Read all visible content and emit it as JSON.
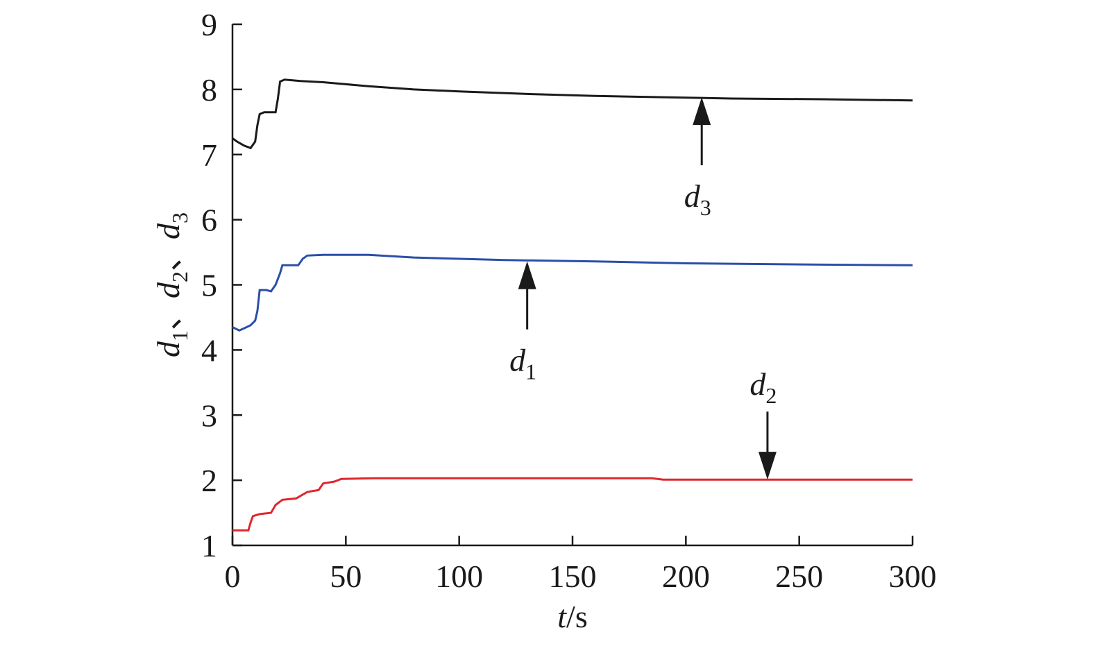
{
  "chart_data": {
    "type": "line",
    "xlabel": {
      "var": "t",
      "unit": "/s"
    },
    "ylabel": [
      {
        "var": "d",
        "sub": "1",
        "sep": "、"
      },
      {
        "var": "d",
        "sub": "2",
        "sep": "、"
      },
      {
        "var": "d",
        "sub": "3",
        "sep": ""
      }
    ],
    "xlim": [
      0,
      300
    ],
    "ylim": [
      1,
      9
    ],
    "xticks": [
      0,
      50,
      100,
      150,
      200,
      250,
      300
    ],
    "yticks": [
      1,
      2,
      3,
      4,
      5,
      6,
      7,
      8,
      9
    ],
    "grid": false,
    "legend": "none",
    "series": [
      {
        "color": "#1a1a1a",
        "points": [
          [
            0,
            7.25
          ],
          [
            2,
            7.2
          ],
          [
            5,
            7.14
          ],
          [
            8,
            7.1
          ],
          [
            10,
            7.2
          ],
          [
            11,
            7.45
          ],
          [
            12,
            7.62
          ],
          [
            14,
            7.65
          ],
          [
            19,
            7.65
          ],
          [
            20,
            7.85
          ],
          [
            21,
            8.12
          ],
          [
            23,
            8.15
          ],
          [
            30,
            8.13
          ],
          [
            40,
            8.11
          ],
          [
            50,
            8.08
          ],
          [
            60,
            8.05
          ],
          [
            80,
            8.0
          ],
          [
            100,
            7.97
          ],
          [
            130,
            7.93
          ],
          [
            160,
            7.9
          ],
          [
            190,
            7.88
          ],
          [
            220,
            7.86
          ],
          [
            260,
            7.85
          ],
          [
            300,
            7.83
          ]
        ]
      },
      {
        "color": "#2b4ea8",
        "points": [
          [
            0,
            4.35
          ],
          [
            3,
            4.3
          ],
          [
            5,
            4.33
          ],
          [
            8,
            4.38
          ],
          [
            10,
            4.45
          ],
          [
            11,
            4.6
          ],
          [
            12,
            4.92
          ],
          [
            15,
            4.92
          ],
          [
            17,
            4.9
          ],
          [
            19,
            5.0
          ],
          [
            21,
            5.18
          ],
          [
            22,
            5.3
          ],
          [
            29,
            5.3
          ],
          [
            31,
            5.4
          ],
          [
            33,
            5.45
          ],
          [
            40,
            5.46
          ],
          [
            60,
            5.46
          ],
          [
            80,
            5.42
          ],
          [
            120,
            5.38
          ],
          [
            160,
            5.36
          ],
          [
            200,
            5.33
          ],
          [
            260,
            5.31
          ],
          [
            300,
            5.3
          ]
        ]
      },
      {
        "color": "#e0262d",
        "points": [
          [
            0,
            1.23
          ],
          [
            7,
            1.23
          ],
          [
            8,
            1.35
          ],
          [
            9,
            1.45
          ],
          [
            12,
            1.48
          ],
          [
            17,
            1.5
          ],
          [
            19,
            1.62
          ],
          [
            22,
            1.7
          ],
          [
            28,
            1.72
          ],
          [
            31,
            1.78
          ],
          [
            33,
            1.82
          ],
          [
            38,
            1.85
          ],
          [
            40,
            1.95
          ],
          [
            45,
            1.98
          ],
          [
            48,
            2.02
          ],
          [
            62,
            2.03
          ],
          [
            100,
            2.03
          ],
          [
            185,
            2.03
          ],
          [
            190,
            2.01
          ],
          [
            300,
            2.01
          ]
        ]
      }
    ],
    "annotations": [
      {
        "var": "d",
        "sub": "3",
        "x": 207,
        "tip_y": 7.88,
        "direction": "up"
      },
      {
        "var": "d",
        "sub": "1",
        "x": 130,
        "tip_y": 5.36,
        "direction": "up"
      },
      {
        "var": "d",
        "sub": "2",
        "x": 236,
        "tip_y": 2.01,
        "direction": "down"
      }
    ]
  }
}
